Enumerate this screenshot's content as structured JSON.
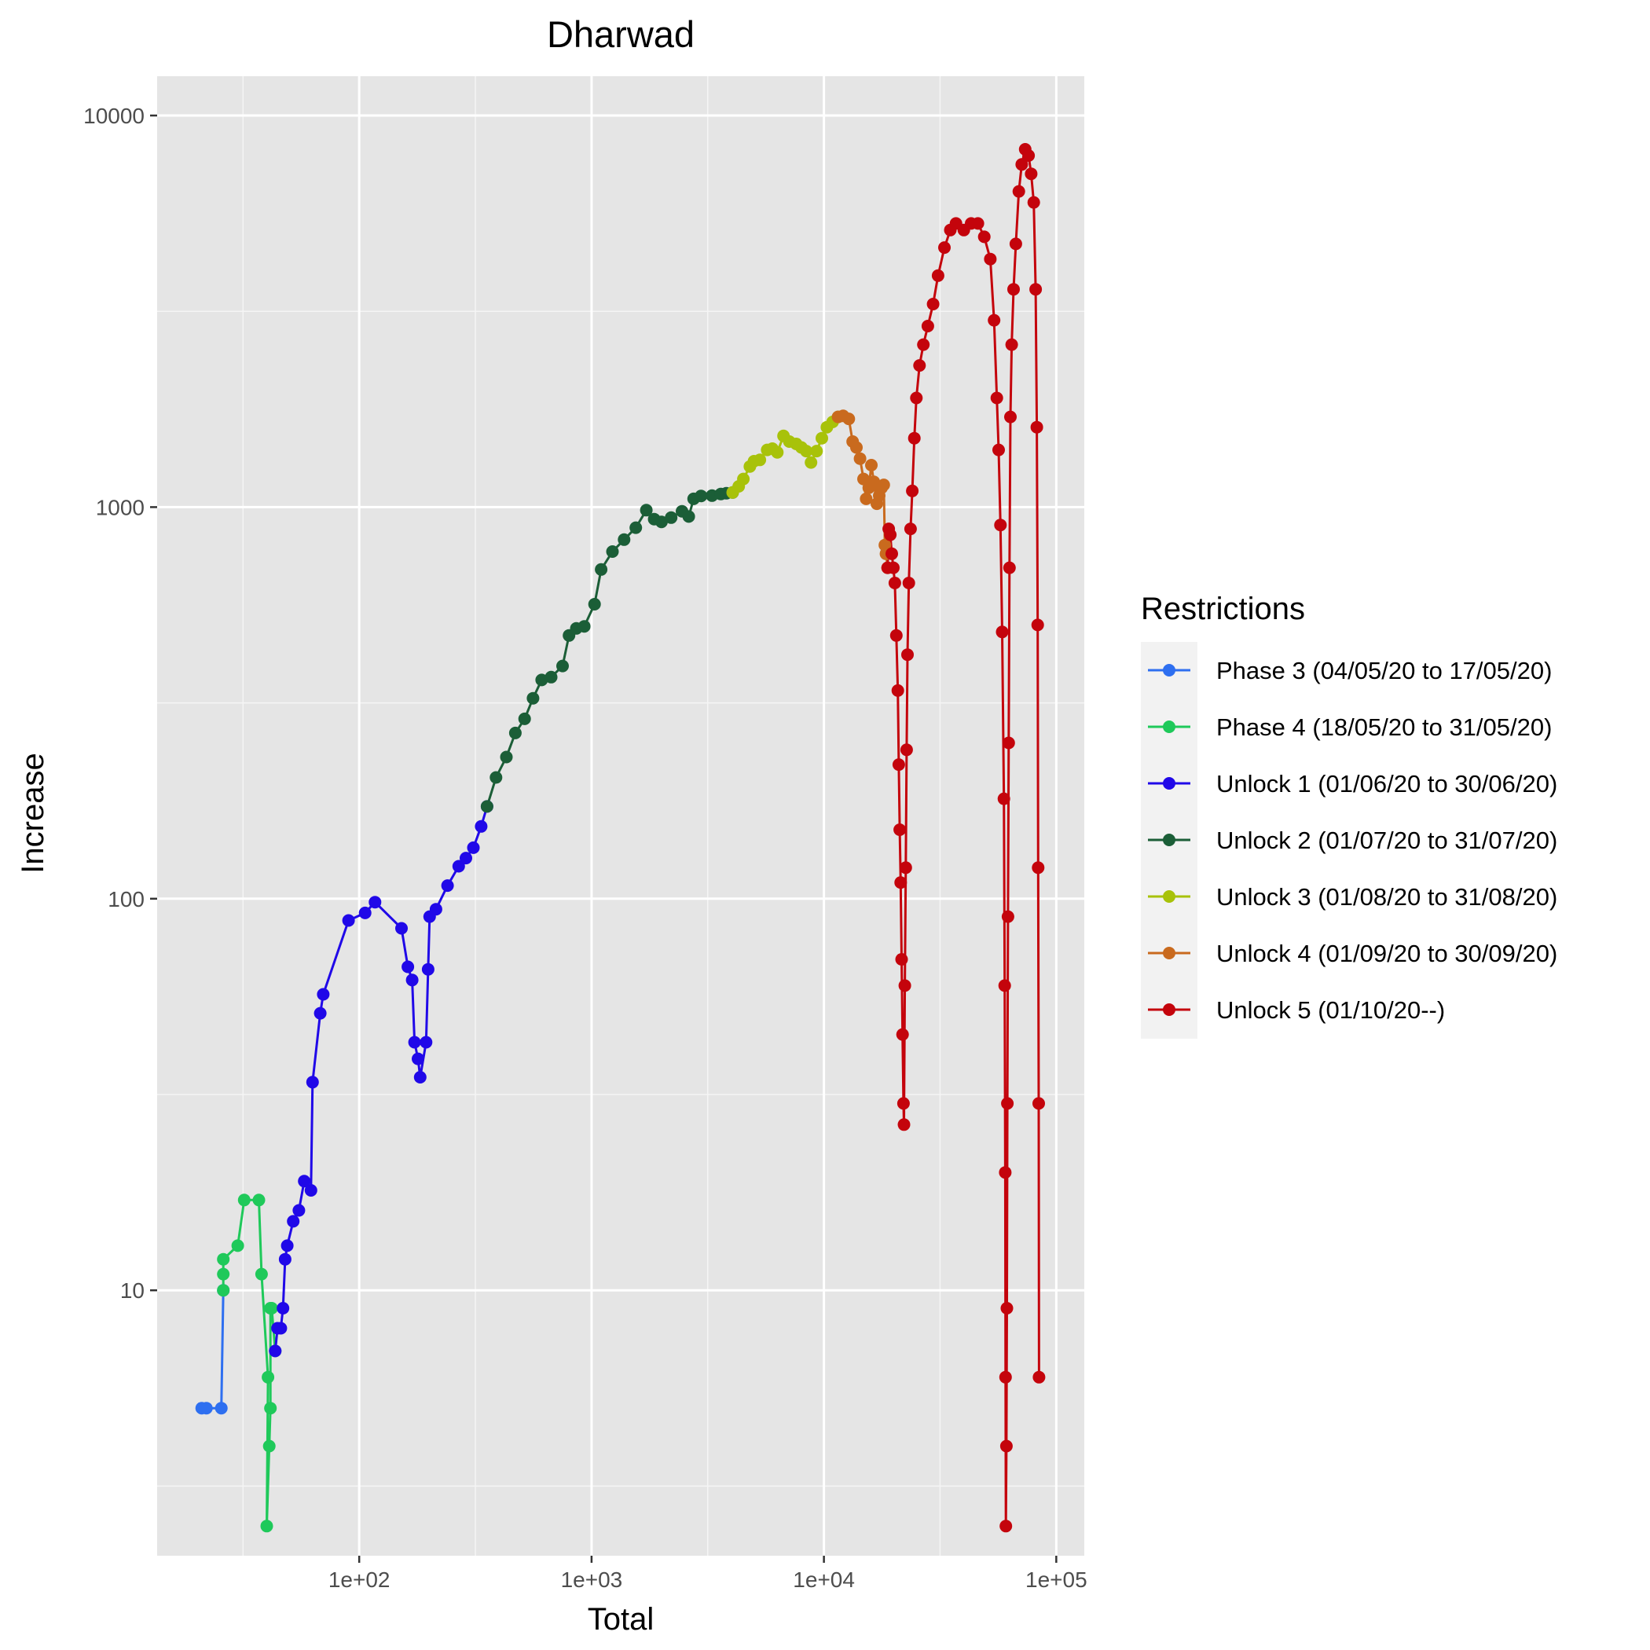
{
  "chart_data": {
    "type": "line",
    "title": "Dharwad",
    "xlabel": "Total",
    "ylabel": "Increase",
    "x_scale": "log10",
    "y_scale": "log10",
    "xlim": [
      13.5,
      132000
    ],
    "ylim": [
      2.1,
      12600
    ],
    "x_ticks": [
      100,
      1000,
      10000,
      100000
    ],
    "x_tick_labels": [
      "1e+02",
      "1e+03",
      "1e+04",
      "1e+05"
    ],
    "y_ticks": [
      10,
      100,
      1000,
      10000
    ],
    "y_tick_labels": [
      "10",
      "100",
      "1000",
      "10000"
    ],
    "grid": true,
    "legend": {
      "title": "Restrictions",
      "position": "right"
    },
    "series": [
      {
        "name": "Phase 3 (04/05/20 to 17/05/20)",
        "color": "#2e6ff0",
        "points": [
          [
            21,
            5
          ],
          [
            22,
            5
          ],
          [
            25.5,
            5
          ],
          [
            26,
            10
          ]
        ]
      },
      {
        "name": "Phase 4 (18/05/20 to 31/05/20)",
        "color": "#1fc95a",
        "points": [
          [
            26,
            10
          ],
          [
            26,
            11
          ],
          [
            26,
            12
          ],
          [
            30,
            13
          ],
          [
            32,
            17
          ],
          [
            37,
            17
          ],
          [
            38,
            11
          ],
          [
            40.5,
            6
          ],
          [
            40,
            2.5
          ],
          [
            41,
            4
          ],
          [
            41.5,
            5
          ],
          [
            41.5,
            9
          ],
          [
            42,
            9
          ],
          [
            43.5,
            7
          ]
        ]
      },
      {
        "name": "Unlock 1 (01/06/20 to 30/06/20)",
        "color": "#2008e8",
        "points": [
          [
            43.5,
            7
          ],
          [
            44.5,
            8
          ],
          [
            46,
            8
          ],
          [
            47,
            9
          ],
          [
            48,
            12
          ],
          [
            49,
            13
          ],
          [
            52,
            15
          ],
          [
            55,
            16
          ],
          [
            58,
            19
          ],
          [
            62,
            18
          ],
          [
            63,
            34
          ],
          [
            68,
            51
          ],
          [
            70,
            57
          ],
          [
            90,
            88
          ],
          [
            106,
            92
          ],
          [
            117,
            98
          ],
          [
            152,
            84
          ],
          [
            162,
            67
          ],
          [
            169,
            62
          ],
          [
            173,
            43
          ],
          [
            179,
            39
          ],
          [
            183,
            35
          ],
          [
            194,
            43
          ],
          [
            198,
            66
          ],
          [
            201,
            90
          ],
          [
            214,
            94
          ],
          [
            240,
            108
          ],
          [
            268,
            121
          ],
          [
            288,
            127
          ],
          [
            310,
            135
          ],
          [
            335,
            153
          ],
          [
            355,
            172
          ]
        ]
      },
      {
        "name": "Unlock 2 (01/07/20 to 31/07/20)",
        "color": "#1b5e37",
        "points": [
          [
            355,
            172
          ],
          [
            388,
            204
          ],
          [
            430,
            230
          ],
          [
            470,
            265
          ],
          [
            515,
            288
          ],
          [
            560,
            325
          ],
          [
            610,
            362
          ],
          [
            670,
            368
          ],
          [
            750,
            393
          ],
          [
            800,
            470
          ],
          [
            860,
            490
          ],
          [
            930,
            496
          ],
          [
            1030,
            565
          ],
          [
            1100,
            693
          ],
          [
            1230,
            770
          ],
          [
            1380,
            826
          ],
          [
            1550,
            886
          ],
          [
            1720,
            982
          ],
          [
            1860,
            932
          ],
          [
            2000,
            917
          ],
          [
            2200,
            940
          ],
          [
            2450,
            976
          ],
          [
            2620,
            946
          ],
          [
            2750,
            1050
          ],
          [
            2960,
            1068
          ],
          [
            3300,
            1070
          ],
          [
            3600,
            1080
          ],
          [
            3800,
            1085
          ],
          [
            4050,
            1090
          ]
        ]
      },
      {
        "name": "Unlock 3 (01/08/20 to 31/08/20)",
        "color": "#a8c20a",
        "points": [
          [
            4050,
            1090
          ],
          [
            4300,
            1130
          ],
          [
            4500,
            1180
          ],
          [
            4800,
            1270
          ],
          [
            5000,
            1310
          ],
          [
            5300,
            1320
          ],
          [
            5700,
            1400
          ],
          [
            6000,
            1410
          ],
          [
            6300,
            1380
          ],
          [
            6700,
            1520
          ],
          [
            7100,
            1470
          ],
          [
            7600,
            1450
          ],
          [
            8000,
            1420
          ],
          [
            8400,
            1390
          ],
          [
            8800,
            1300
          ],
          [
            9300,
            1390
          ],
          [
            9800,
            1500
          ],
          [
            10300,
            1600
          ],
          [
            10900,
            1650
          ],
          [
            11500,
            1700
          ]
        ]
      },
      {
        "name": "Unlock 4 (01/09/20 to 30/09/20)",
        "color": "#c96a1e",
        "points": [
          [
            11500,
            1700
          ],
          [
            12100,
            1710
          ],
          [
            12800,
            1680
          ],
          [
            13300,
            1470
          ],
          [
            13800,
            1420
          ],
          [
            14300,
            1330
          ],
          [
            14800,
            1180
          ],
          [
            15200,
            1050
          ],
          [
            15600,
            1120
          ],
          [
            16000,
            1280
          ],
          [
            16400,
            1160
          ],
          [
            16900,
            1020
          ],
          [
            17300,
            1070
          ],
          [
            17700,
            1120
          ],
          [
            18100,
            1140
          ],
          [
            18300,
            800
          ],
          [
            18500,
            760
          ],
          [
            18800,
            700
          ]
        ]
      },
      {
        "name": "Unlock 5 (01/10/20--)",
        "color": "#c4040c",
        "points": [
          [
            18800,
            700
          ],
          [
            19000,
            880
          ],
          [
            19300,
            850
          ],
          [
            19600,
            760
          ],
          [
            19900,
            700
          ],
          [
            20200,
            640
          ],
          [
            20500,
            470
          ],
          [
            20800,
            340
          ],
          [
            21000,
            220
          ],
          [
            21200,
            150
          ],
          [
            21400,
            110
          ],
          [
            21600,
            70
          ],
          [
            21800,
            45
          ],
          [
            22000,
            30
          ],
          [
            22100,
            26.5
          ],
          [
            22300,
            60
          ],
          [
            22500,
            120
          ],
          [
            22700,
            240
          ],
          [
            22900,
            420
          ],
          [
            23200,
            640
          ],
          [
            23600,
            880
          ],
          [
            24000,
            1100
          ],
          [
            24500,
            1500
          ],
          [
            25000,
            1900
          ],
          [
            25800,
            2300
          ],
          [
            26800,
            2600
          ],
          [
            28000,
            2900
          ],
          [
            29500,
            3300
          ],
          [
            31000,
            3900
          ],
          [
            33000,
            4600
          ],
          [
            35000,
            5100
          ],
          [
            37000,
            5300
          ],
          [
            40000,
            5100
          ],
          [
            43000,
            5300
          ],
          [
            46000,
            5300
          ],
          [
            49000,
            4900
          ],
          [
            52000,
            4300
          ],
          [
            54000,
            3000
          ],
          [
            55500,
            1900
          ],
          [
            56500,
            1400
          ],
          [
            57500,
            900
          ],
          [
            58500,
            480
          ],
          [
            59500,
            180
          ],
          [
            60000,
            60
          ],
          [
            60300,
            20
          ],
          [
            60500,
            6
          ],
          [
            60700,
            2.5
          ],
          [
            61000,
            4
          ],
          [
            61300,
            9
          ],
          [
            61600,
            30
          ],
          [
            62000,
            90
          ],
          [
            62400,
            250
          ],
          [
            62900,
            700
          ],
          [
            63500,
            1700
          ],
          [
            64300,
            2600
          ],
          [
            65500,
            3600
          ],
          [
            67000,
            4700
          ],
          [
            69000,
            6400
          ],
          [
            71000,
            7500
          ],
          [
            73500,
            8200
          ],
          [
            76000,
            7900
          ],
          [
            78000,
            7100
          ],
          [
            80000,
            6000
          ],
          [
            81500,
            3600
          ],
          [
            82500,
            1600
          ],
          [
            83200,
            500
          ],
          [
            83600,
            120
          ],
          [
            84000,
            30
          ],
          [
            84300,
            6
          ]
        ]
      }
    ]
  }
}
